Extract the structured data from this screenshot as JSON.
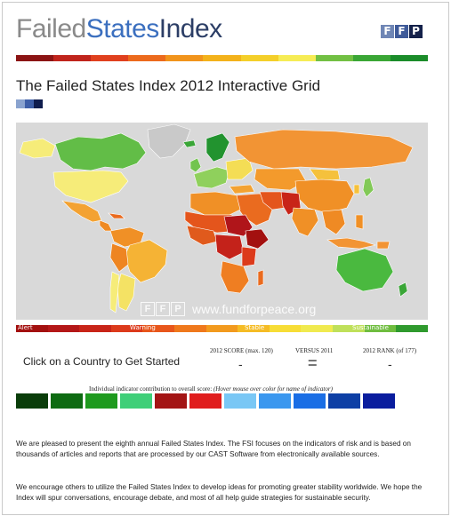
{
  "logo": {
    "word1": "Failed",
    "word2": "States",
    "word3": "Index"
  },
  "ffp_badge": [
    "F",
    "F",
    "P"
  ],
  "top_bar_colors": [
    "#8b1414",
    "#c0241c",
    "#e0401e",
    "#ec6a1d",
    "#f1941c",
    "#f3b21b",
    "#f4cf2a",
    "#f6ec55",
    "#72c043",
    "#3aa635",
    "#1b8c2a"
  ],
  "title": "The Failed States Index 2012 Interactive Grid",
  "title_swatches": [
    "#8aa3cf",
    "#3e5fa8",
    "#0f1d4e"
  ],
  "map": {
    "background": "#d9d9d9",
    "watermark_badge": [
      "F",
      "F",
      "P"
    ],
    "watermark_url": "www.fundforpeace.org"
  },
  "scale": {
    "colors": [
      "#a3100f",
      "#b41717",
      "#c82418",
      "#dc3a1b",
      "#e8561b",
      "#ef781c",
      "#f29a1e",
      "#f5bc25",
      "#f7dd36",
      "#f0ea4f",
      "#bfe05a",
      "#6fbd3f",
      "#2f9a2e"
    ],
    "labels": {
      "alert": "Alert",
      "warning": "Warning",
      "stable": "Stable",
      "sustainable": "Sustainable"
    }
  },
  "score_panel": {
    "prompt": "Click on a Country to Get Started",
    "score_header": "2012 SCORE (max. 120)",
    "versus_header": "VERSUS 2011",
    "rank_header": "2012 RANK (of 177)",
    "score_value": "-",
    "versus_value": "=",
    "rank_value": "-"
  },
  "indicators": {
    "title": "Individual indicator contribution to overall score:",
    "hint": "(Hover mouse over color for name of indicator)",
    "colors": [
      "#0a3d0a",
      "#0e6b12",
      "#1e9a1e",
      "#3fcf78",
      "#a31414",
      "#e01c1c",
      "#79c7f5",
      "#3a97ef",
      "#1a6ee5",
      "#0d3fa5",
      "#0a1d9e"
    ]
  },
  "paragraphs": [
    "We are pleased to present the eighth annual Failed States Index. The FSI focuses on the indicators of risk and is based on thousands of articles and reports that are processed by our CAST Software from electronically available sources.",
    "We encourage others to utilize the Failed States Index to develop ideas for promoting greater stability worldwide. We hope the Index will spur conversations, encourage debate, and most of all help guide strategies for sustainable security."
  ]
}
